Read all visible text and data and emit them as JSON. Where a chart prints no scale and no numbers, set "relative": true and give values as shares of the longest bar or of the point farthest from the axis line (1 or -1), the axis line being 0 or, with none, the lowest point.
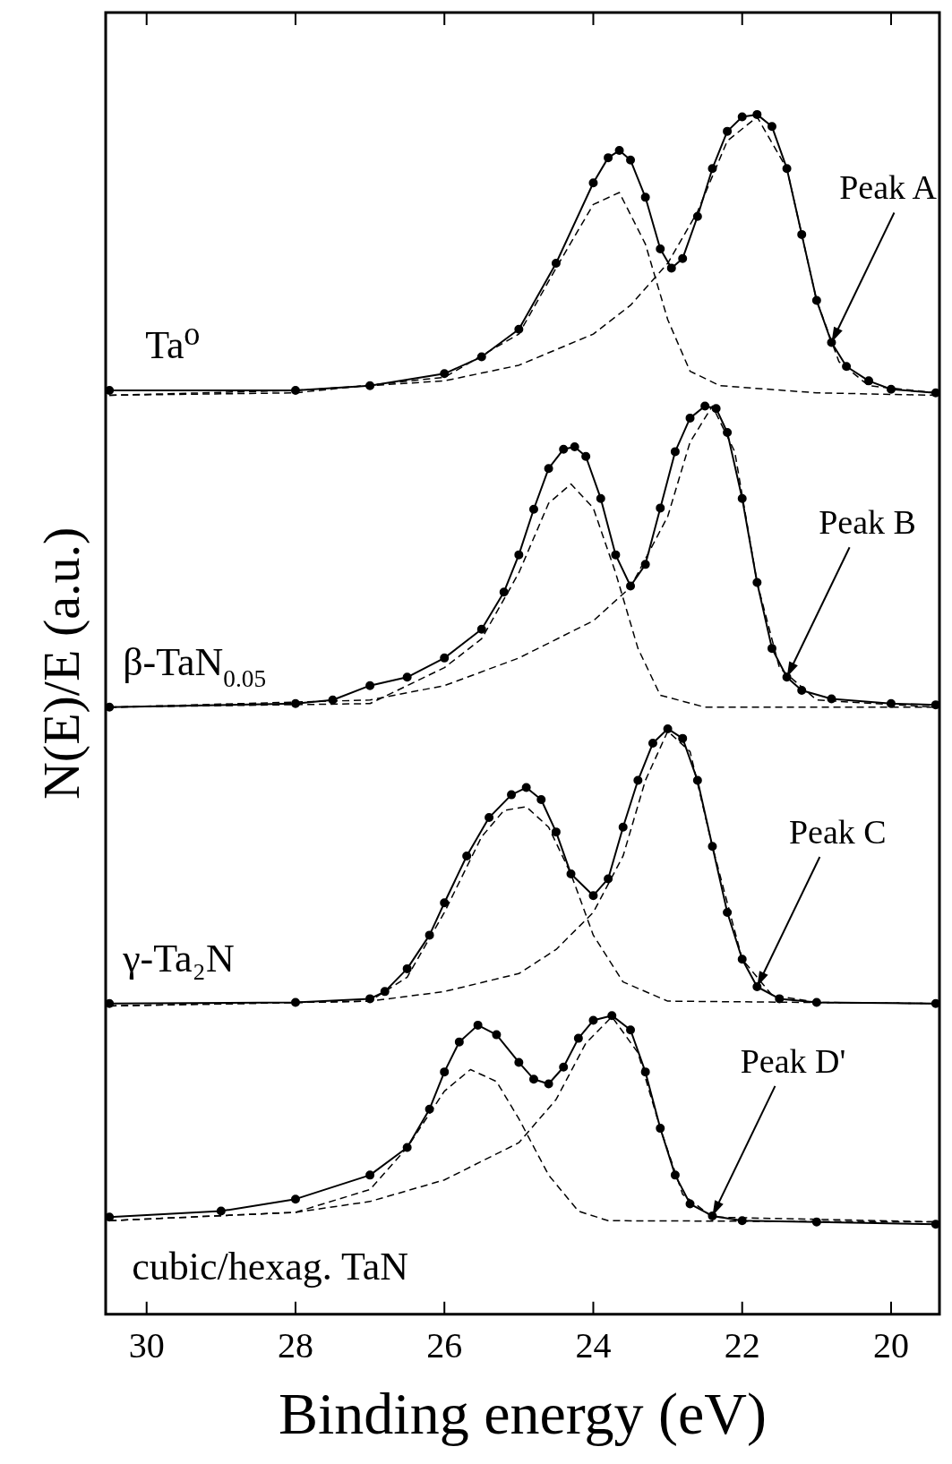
{
  "chart_data": {
    "type": "line",
    "xlabel": "Binding energy (eV)",
    "ylabel": "N(E)/E (a.u.)",
    "relative": true,
    "xlim": [
      30.55,
      19.35
    ],
    "xticks": [
      30,
      28,
      26,
      24,
      22,
      20
    ],
    "grid": false,
    "legend": false,
    "series": [
      {
        "name": "Ta⁰",
        "color": "#000000",
        "marker": "circle",
        "x": [
          30.5,
          28,
          27,
          26,
          25.5,
          25,
          24.5,
          24,
          23.8,
          23.65,
          23.5,
          23.3,
          23.1,
          22.95,
          22.8,
          22.6,
          22.4,
          22.2,
          22,
          21.8,
          21.6,
          21.4,
          21.2,
          21,
          20.8,
          20.6,
          20.3,
          20,
          19.4
        ],
        "values": [
          0.77,
          0.77,
          0.774,
          0.784,
          0.798,
          0.821,
          0.876,
          0.943,
          0.964,
          0.97,
          0.962,
          0.931,
          0.888,
          0.872,
          0.88,
          0.915,
          0.955,
          0.986,
          0.998,
          1.0,
          0.99,
          0.955,
          0.9,
          0.845,
          0.81,
          0.79,
          0.778,
          0.771,
          0.768
        ]
      },
      {
        "color": "#000000",
        "marker": "none",
        "line_style": "dashed",
        "x": [
          30.5,
          28,
          26,
          25,
          24.5,
          24,
          23.65,
          23.3,
          23,
          22.7,
          22.3,
          21,
          19.4
        ],
        "values": [
          0.766,
          0.768,
          0.781,
          0.817,
          0.872,
          0.925,
          0.935,
          0.892,
          0.829,
          0.786,
          0.774,
          0.768,
          0.766
        ]
      },
      {
        "color": "#000000",
        "marker": "none",
        "line_style": "dashed",
        "x": [
          30.5,
          28,
          26,
          25,
          24,
          23.5,
          23,
          22.6,
          22.2,
          21.8,
          21.4,
          21,
          20.7,
          20.3,
          19.4
        ],
        "values": [
          0.766,
          0.77,
          0.778,
          0.791,
          0.817,
          0.841,
          0.876,
          0.919,
          0.978,
          0.998,
          0.955,
          0.845,
          0.794,
          0.774,
          0.768
        ]
      },
      {
        "name": "β-TaN$_{0.05}$",
        "color": "#000000",
        "marker": "circle",
        "x": [
          30.5,
          28,
          27.5,
          27,
          26.5,
          26,
          25.5,
          25.2,
          25,
          24.8,
          24.6,
          24.4,
          24.25,
          24.1,
          23.9,
          23.7,
          23.5,
          23.3,
          23.1,
          22.9,
          22.7,
          22.5,
          22.35,
          22.2,
          22,
          21.8,
          21.6,
          21.4,
          21.2,
          20.8,
          20,
          19.4
        ],
        "values": [
          0.506,
          0.509,
          0.512,
          0.524,
          0.531,
          0.547,
          0.571,
          0.602,
          0.633,
          0.671,
          0.705,
          0.721,
          0.723,
          0.715,
          0.68,
          0.633,
          0.607,
          0.625,
          0.672,
          0.719,
          0.747,
          0.757,
          0.755,
          0.735,
          0.68,
          0.61,
          0.555,
          0.531,
          0.52,
          0.513,
          0.509,
          0.508
        ]
      },
      {
        "color": "#000000",
        "marker": "none",
        "line_style": "dashed",
        "x": [
          30.5,
          27,
          26,
          25.5,
          25,
          24.6,
          24.3,
          24,
          23.7,
          23.4,
          23.1,
          22.5,
          19.4
        ],
        "values": [
          0.506,
          0.509,
          0.539,
          0.563,
          0.618,
          0.676,
          0.692,
          0.672,
          0.618,
          0.555,
          0.516,
          0.506,
          0.506
        ]
      },
      {
        "color": "#000000",
        "marker": "none",
        "line_style": "dashed",
        "x": [
          30.5,
          27,
          26,
          25,
          24,
          23.5,
          23,
          22.7,
          22.4,
          22.1,
          21.8,
          21.5,
          21,
          19.4
        ],
        "values": [
          0.506,
          0.512,
          0.524,
          0.547,
          0.578,
          0.606,
          0.665,
          0.727,
          0.757,
          0.719,
          0.61,
          0.539,
          0.512,
          0.506
        ]
      },
      {
        "name": "γ-Ta₂N",
        "color": "#000000",
        "marker": "circle",
        "x": [
          30.5,
          28,
          27,
          26.8,
          26.5,
          26.2,
          26,
          25.7,
          25.4,
          25.1,
          24.9,
          24.7,
          24.5,
          24.3,
          24,
          23.8,
          23.6,
          23.4,
          23.2,
          23,
          22.8,
          22.6,
          22.4,
          22.2,
          22,
          21.8,
          21.5,
          21,
          19.4
        ],
        "values": [
          0.259,
          0.26,
          0.263,
          0.269,
          0.288,
          0.316,
          0.343,
          0.382,
          0.414,
          0.433,
          0.439,
          0.429,
          0.402,
          0.367,
          0.349,
          0.363,
          0.406,
          0.445,
          0.476,
          0.488,
          0.48,
          0.445,
          0.39,
          0.335,
          0.296,
          0.273,
          0.263,
          0.26,
          0.259
        ]
      },
      {
        "color": "#000000",
        "marker": "none",
        "line_style": "dashed",
        "x": [
          30.5,
          27,
          26.5,
          26,
          25.5,
          25.2,
          24.9,
          24.6,
          24.3,
          24,
          23.6,
          23,
          19.4
        ],
        "values": [
          0.257,
          0.261,
          0.281,
          0.335,
          0.398,
          0.42,
          0.423,
          0.406,
          0.367,
          0.316,
          0.277,
          0.261,
          0.259
        ]
      },
      {
        "color": "#000000",
        "marker": "none",
        "line_style": "dashed",
        "x": [
          30.5,
          27,
          26,
          25,
          24.5,
          24,
          23.6,
          23.3,
          23,
          22.7,
          22.4,
          22,
          21.6,
          21,
          19.4
        ],
        "values": [
          0.257,
          0.261,
          0.269,
          0.284,
          0.304,
          0.335,
          0.382,
          0.445,
          0.486,
          0.469,
          0.39,
          0.296,
          0.266,
          0.26,
          0.259
        ]
      },
      {
        "name": "cubic/hexag. TaN",
        "color": "#000000",
        "marker": "circle",
        "x": [
          30.5,
          29,
          28,
          27,
          26.5,
          26.2,
          26,
          25.8,
          25.55,
          25.3,
          25,
          24.8,
          24.6,
          24.4,
          24.2,
          24,
          23.75,
          23.5,
          23.3,
          23.1,
          22.9,
          22.7,
          22.4,
          22,
          21,
          19.4
        ],
        "values": [
          0.081,
          0.086,
          0.096,
          0.116,
          0.139,
          0.171,
          0.202,
          0.227,
          0.241,
          0.233,
          0.21,
          0.196,
          0.192,
          0.206,
          0.23,
          0.245,
          0.249,
          0.237,
          0.202,
          0.155,
          0.116,
          0.092,
          0.082,
          0.078,
          0.077,
          0.075
        ]
      },
      {
        "color": "#000000",
        "marker": "none",
        "line_style": "dashed",
        "x": [
          30.5,
          28,
          27,
          26.5,
          26,
          25.65,
          25.3,
          25,
          24.6,
          24.2,
          23.8,
          19.4
        ],
        "values": [
          0.078,
          0.085,
          0.104,
          0.139,
          0.186,
          0.204,
          0.194,
          0.163,
          0.116,
          0.086,
          0.078,
          0.077
        ]
      },
      {
        "color": "#000000",
        "marker": "none",
        "line_style": "dashed",
        "x": [
          30.5,
          28,
          27,
          26,
          25,
          24.5,
          24.1,
          23.75,
          23.4,
          23.1,
          22.8,
          22.4,
          19.4
        ],
        "values": [
          0.078,
          0.085,
          0.094,
          0.112,
          0.143,
          0.179,
          0.226,
          0.248,
          0.218,
          0.155,
          0.1,
          0.081,
          0.077
        ]
      }
    ],
    "annotations": [
      {
        "text": "Peak A",
        "x": 20.8,
        "y": 0.81
      },
      {
        "text": "Peak B",
        "x": 21.4,
        "y": 0.531
      },
      {
        "text": "Peak C",
        "x": 21.8,
        "y": 0.273
      },
      {
        "text": "Peak D'",
        "x": 22.4,
        "y": 0.082
      }
    ]
  }
}
